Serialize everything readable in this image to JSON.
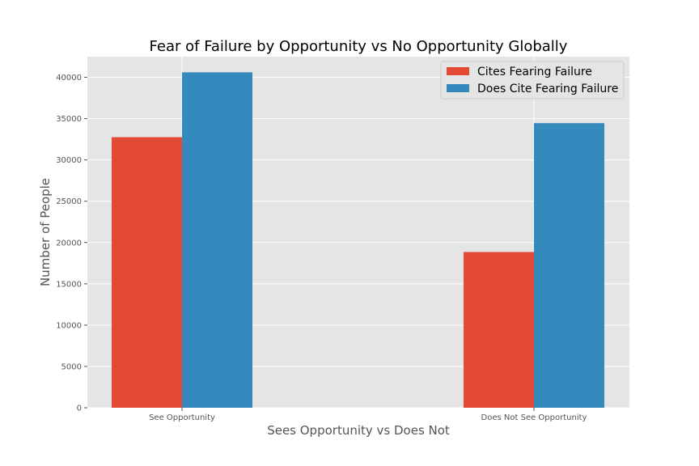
{
  "chart_data": {
    "type": "bar",
    "title": "Fear of Failure by Opportunity vs No Opportunity Globally",
    "xlabel": "Sees Opportunity vs Does Not",
    "ylabel": "Number of People",
    "categories": [
      "See Opportunity",
      "Does Not See Opportunity"
    ],
    "series": [
      {
        "name": "Cites Fearing Failure",
        "values": [
          32750,
          18850
        ],
        "color": "#E24A33"
      },
      {
        "name": "Does Cite Fearing Failure",
        "values": [
          40600,
          34450
        ],
        "color": "#348ABD"
      }
    ],
    "ylim": [
      0,
      42500
    ],
    "yticks": [
      0,
      5000,
      10000,
      15000,
      20000,
      25000,
      30000,
      35000,
      40000
    ],
    "grid": true,
    "legend": "top-right",
    "style": {
      "plot_bg": "#E5E5E5",
      "grid_color": "#FFFFFF"
    }
  }
}
